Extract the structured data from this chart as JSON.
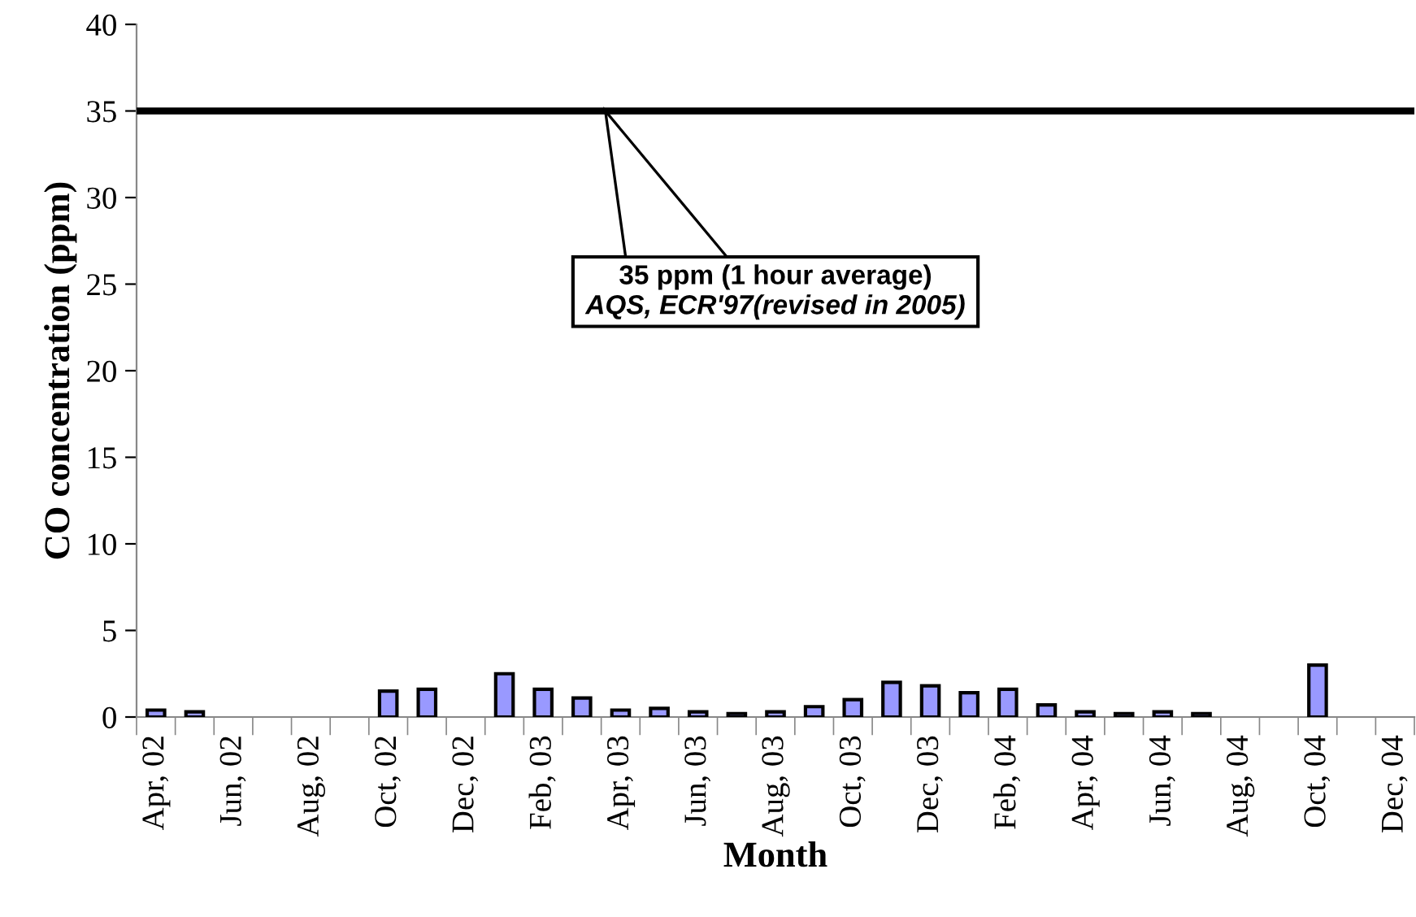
{
  "chart_data": {
    "type": "bar",
    "xlabel": "Month",
    "ylabel": "CO concentration (ppm)",
    "categories": [
      "Apr, 02",
      null,
      "Jun, 02",
      null,
      "Aug, 02",
      null,
      "Oct, 02",
      null,
      "Dec, 02",
      null,
      "Feb, 03",
      null,
      "Apr, 03",
      null,
      "Jun, 03",
      null,
      "Aug, 03",
      null,
      "Oct, 03",
      null,
      "Dec, 03",
      null,
      "Feb, 04",
      null,
      "Apr, 04",
      null,
      "Jun, 04",
      null,
      "Aug, 04",
      null,
      "Oct, 04",
      null,
      "Dec, 04"
    ],
    "values": [
      0.4,
      0.3,
      null,
      null,
      null,
      null,
      1.5,
      1.6,
      null,
      2.5,
      1.6,
      1.1,
      0.4,
      0.5,
      0.3,
      0.2,
      0.3,
      0.6,
      1.0,
      2.0,
      1.8,
      1.4,
      1.6,
      0.7,
      0.3,
      0.2,
      0.3,
      0.2,
      null,
      null,
      3.0,
      null,
      null
    ],
    "color": "#9999ff",
    "ylim": [
      0,
      40
    ],
    "yticks": [
      0,
      5,
      10,
      15,
      20,
      25,
      30,
      35,
      40
    ],
    "grid": false,
    "ref_lines": [
      {
        "axis": "y",
        "value": 35,
        "color": "#000000",
        "label": "35 ppm (1 hour average)"
      }
    ],
    "annotations": [
      "AQS, ECR'97(revised in 2005)"
    ]
  }
}
